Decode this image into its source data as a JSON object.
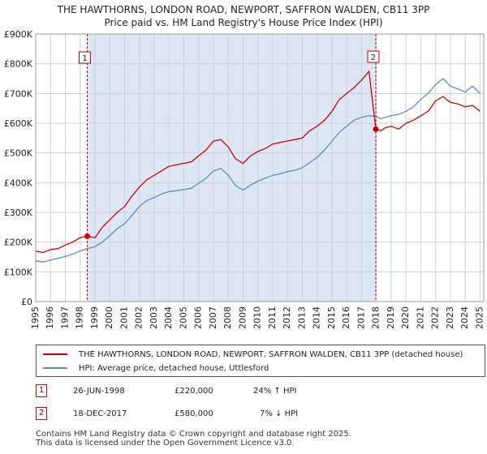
{
  "title_line1": "THE HAWTHORNS, LONDON ROAD, NEWPORT, SAFFRON WALDEN, CB11 3PP",
  "title_line2": "Price paid vs. HM Land Registry's House Price Index (HPI)",
  "legend": {
    "series1_label": "THE HAWTHORNS, LONDON ROAD, NEWPORT, SAFFRON WALDEN, CB11 3PP (detached house)",
    "series2_label": "HPI: Average price, detached house, Uttlesford"
  },
  "transactions": [
    {
      "num": "1",
      "date": "26-JUN-1998",
      "price": "£220,000",
      "hpi": "24% ↑ HPI"
    },
    {
      "num": "2",
      "date": "18-DEC-2017",
      "price": "£580,000",
      "hpi": "7% ↓ HPI"
    }
  ],
  "footer_line1": "Contains HM Land Registry data © Crown copyright and database right 2025.",
  "footer_line2": "This data is licensed under the Open Government Licence v3.0.",
  "colors": {
    "property": "#cc0000",
    "hpi": "#5b8cc8",
    "shade": "#dde6f5",
    "grid": "#d0d0d0",
    "marker_line": "#cc0000"
  },
  "chart_data": {
    "type": "line",
    "title": "THE HAWTHORNS, LONDON ROAD, NEWPORT, SAFFRON WALDEN, CB11 3PP - Price paid vs. HM Land Registry's House Price Index (HPI)",
    "xlabel": "",
    "ylabel": "",
    "xlim": [
      1995,
      2025.25
    ],
    "ylim": [
      0,
      900000
    ],
    "yticks": [
      0,
      100000,
      200000,
      300000,
      400000,
      500000,
      600000,
      700000,
      800000,
      900000
    ],
    "ytick_labels": [
      "£0",
      "£100K",
      "£200K",
      "£300K",
      "£400K",
      "£500K",
      "£600K",
      "£700K",
      "£800K",
      "£900K"
    ],
    "xticks": [
      1995,
      1996,
      1997,
      1998,
      1999,
      2000,
      2001,
      2002,
      2003,
      2004,
      2005,
      2006,
      2007,
      2008,
      2009,
      2010,
      2011,
      2012,
      2013,
      2014,
      2015,
      2016,
      2017,
      2018,
      2019,
      2020,
      2021,
      2022,
      2023,
      2024,
      2025
    ],
    "shaded_range": [
      1998.48,
      2017.96
    ],
    "annotations": [
      {
        "label": "1",
        "x": 1998.48,
        "y": 220000
      },
      {
        "label": "2",
        "x": 2017.96,
        "y": 580000
      }
    ],
    "series": [
      {
        "name": "THE HAWTHORNS, LONDON ROAD, NEWPORT, SAFFRON WALDEN, CB11 3PP (detached house)",
        "x": [
          1995.0,
          1995.5,
          1996.0,
          1996.5,
          1997.0,
          1997.5,
          1998.0,
          1998.48,
          1999.0,
          1999.5,
          2000.0,
          2000.5,
          2001.0,
          2001.5,
          2002.0,
          2002.5,
          2003.0,
          2003.5,
          2004.0,
          2004.5,
          2005.0,
          2005.5,
          2006.0,
          2006.5,
          2007.0,
          2007.5,
          2008.0,
          2008.5,
          2009.0,
          2009.5,
          2010.0,
          2010.5,
          2011.0,
          2011.5,
          2012.0,
          2012.5,
          2013.0,
          2013.5,
          2014.0,
          2014.5,
          2015.0,
          2015.5,
          2016.0,
          2016.5,
          2017.0,
          2017.5,
          2017.96,
          2018.3,
          2018.6,
          2019.0,
          2019.5,
          2020.0,
          2020.5,
          2021.0,
          2021.5,
          2022.0,
          2022.5,
          2023.0,
          2023.5,
          2024.0,
          2024.5,
          2025.0
        ],
        "values": [
          170000,
          165000,
          175000,
          178000,
          190000,
          200000,
          215000,
          220000,
          215000,
          250000,
          275000,
          300000,
          320000,
          355000,
          385000,
          410000,
          425000,
          440000,
          455000,
          460000,
          465000,
          470000,
          490000,
          510000,
          540000,
          545000,
          520000,
          480000,
          465000,
          490000,
          505000,
          515000,
          530000,
          535000,
          540000,
          545000,
          550000,
          575000,
          590000,
          610000,
          640000,
          680000,
          700000,
          720000,
          745000,
          775000,
          580000,
          575000,
          585000,
          590000,
          580000,
          600000,
          610000,
          625000,
          640000,
          675000,
          690000,
          670000,
          665000,
          655000,
          660000,
          640000
        ]
      },
      {
        "name": "HPI: Average price, detached house, Uttlesford",
        "x": [
          1995.0,
          1995.5,
          1996.0,
          1996.5,
          1997.0,
          1997.5,
          1998.0,
          1998.48,
          1999.0,
          1999.5,
          2000.0,
          2000.5,
          2001.0,
          2001.5,
          2002.0,
          2002.5,
          2003.0,
          2003.5,
          2004.0,
          2004.5,
          2005.0,
          2005.5,
          2006.0,
          2006.5,
          2007.0,
          2007.5,
          2008.0,
          2008.5,
          2009.0,
          2009.5,
          2010.0,
          2010.5,
          2011.0,
          2011.5,
          2012.0,
          2012.5,
          2013.0,
          2013.5,
          2014.0,
          2014.5,
          2015.0,
          2015.5,
          2016.0,
          2016.5,
          2017.0,
          2017.5,
          2017.96,
          2018.3,
          2018.6,
          2019.0,
          2019.5,
          2020.0,
          2020.5,
          2021.0,
          2021.5,
          2022.0,
          2022.5,
          2023.0,
          2023.5,
          2024.0,
          2024.5,
          2025.0
        ],
        "values": [
          137000,
          133000,
          140000,
          145000,
          152000,
          160000,
          170000,
          178000,
          185000,
          200000,
          222000,
          245000,
          262000,
          290000,
          320000,
          340000,
          350000,
          362000,
          370000,
          373000,
          377000,
          381000,
          398000,
          415000,
          440000,
          448000,
          425000,
          390000,
          375000,
          392000,
          405000,
          415000,
          425000,
          430000,
          437000,
          442000,
          450000,
          468000,
          485000,
          510000,
          540000,
          570000,
          590000,
          610000,
          620000,
          625000,
          624000,
          615000,
          620000,
          625000,
          630000,
          640000,
          655000,
          680000,
          700000,
          730000,
          750000,
          725000,
          715000,
          705000,
          725000,
          700000
        ]
      }
    ]
  }
}
